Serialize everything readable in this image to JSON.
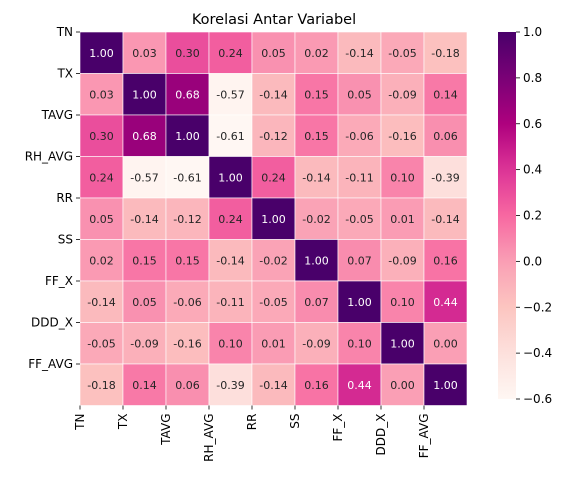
{
  "chart_data": {
    "type": "heatmap",
    "title": "Korelasi Antar Variabel",
    "xlabel": "",
    "ylabel": "",
    "variables": [
      "TN",
      "TX",
      "TAVG",
      "RH_AVG",
      "RR",
      "SS",
      "FF_X",
      "DDD_X",
      "FF_AVG"
    ],
    "values": [
      [
        1.0,
        0.03,
        0.3,
        0.24,
        0.05,
        0.02,
        -0.14,
        -0.05,
        -0.18
      ],
      [
        0.03,
        1.0,
        0.68,
        -0.57,
        -0.14,
        0.15,
        0.05,
        -0.09,
        0.14
      ],
      [
        0.3,
        0.68,
        1.0,
        -0.61,
        -0.12,
        0.15,
        -0.06,
        -0.16,
        0.06
      ],
      [
        0.24,
        -0.57,
        -0.61,
        1.0,
        0.24,
        -0.14,
        -0.11,
        0.1,
        -0.39
      ],
      [
        0.05,
        -0.14,
        -0.12,
        0.24,
        1.0,
        -0.02,
        -0.05,
        0.01,
        -0.14
      ],
      [
        0.02,
        0.15,
        0.15,
        -0.14,
        -0.02,
        1.0,
        0.07,
        -0.09,
        0.16
      ],
      [
        -0.14,
        0.05,
        -0.06,
        -0.11,
        -0.05,
        0.07,
        1.0,
        0.1,
        0.44
      ],
      [
        -0.05,
        -0.09,
        -0.16,
        0.1,
        0.01,
        -0.09,
        0.1,
        1.0,
        0.0
      ],
      [
        -0.18,
        0.14,
        0.06,
        -0.39,
        -0.14,
        0.16,
        0.44,
        0.0,
        1.0
      ]
    ],
    "value_format": "2 decimals",
    "colormap": "RdPu",
    "vmin": -0.6,
    "vmax": 1.0,
    "colorbar_ticks": [
      "1.0",
      "0.8",
      "0.6",
      "0.4",
      "0.2",
      "0.0",
      "−0.2",
      "−0.4",
      "−0.6"
    ],
    "colorbar_tick_values": [
      1.0,
      0.8,
      0.6,
      0.4,
      0.2,
      0.0,
      -0.2,
      -0.4,
      -0.6
    ],
    "legend": "colorbar-right",
    "grid": false,
    "cell_border_color": "#ffffff"
  }
}
